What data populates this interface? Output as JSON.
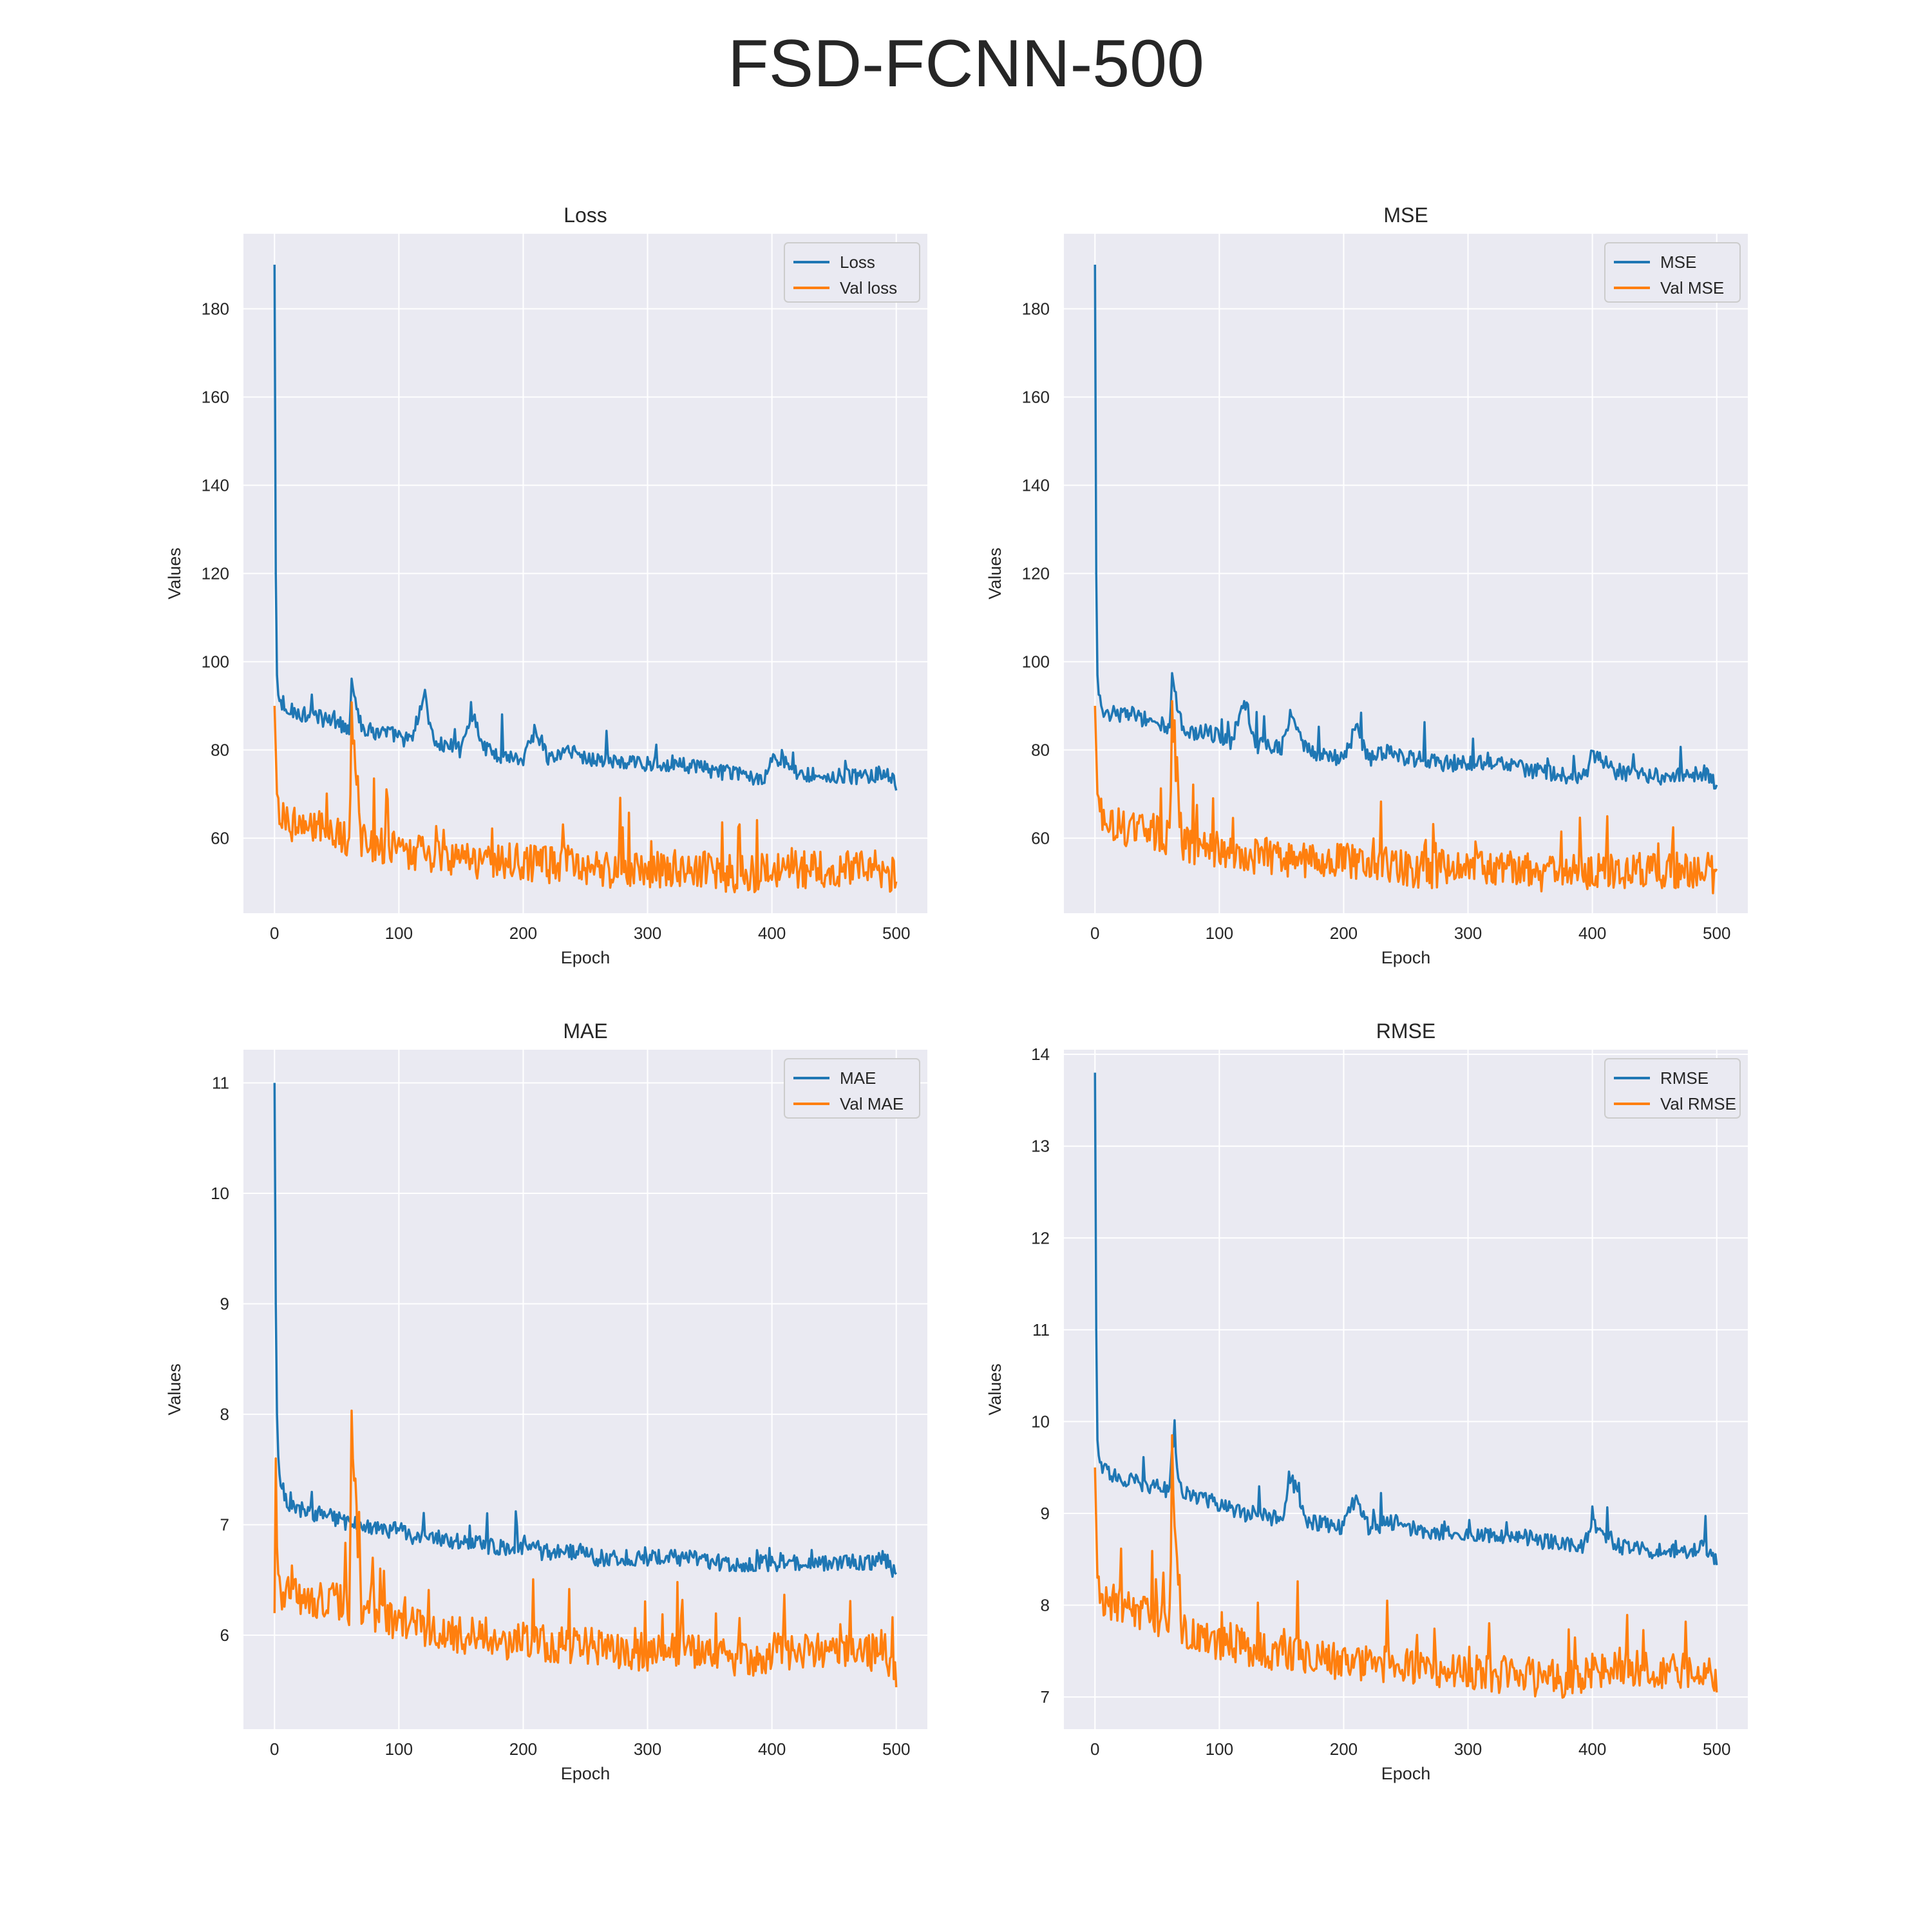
{
  "figure": {
    "title": "FSD-FCNN-500"
  },
  "colors": {
    "background": "#eaeaf2",
    "grid": "#ffffff",
    "train": "#1f77b4",
    "val": "#ff7f0e",
    "text": "#262626"
  },
  "chart_data": [
    {
      "type": "line",
      "title": "Loss",
      "xlabel": "Epoch",
      "ylabel": "Values",
      "xlim": [
        -25,
        525
      ],
      "ylim": [
        43,
        197
      ],
      "xticks": [
        0,
        100,
        200,
        300,
        400,
        500
      ],
      "yticks": [
        60,
        80,
        100,
        120,
        140,
        160,
        180
      ],
      "grid": true,
      "legend": "top-right",
      "series": [
        {
          "name": "Loss",
          "color": "#1f77b4",
          "x": [
            0,
            1,
            2,
            3,
            5,
            10,
            15,
            20,
            30,
            40,
            50,
            60,
            62,
            70,
            80,
            90,
            100,
            110,
            120,
            130,
            140,
            150,
            158,
            170,
            180,
            200,
            210,
            220,
            240,
            250,
            260,
            280,
            300,
            320,
            340,
            360,
            380,
            395,
            400,
            420,
            440,
            460,
            480,
            490,
            500
          ],
          "y": [
            190,
            120,
            97,
            92,
            90,
            88,
            89,
            88,
            88,
            87,
            86,
            85,
            96,
            85,
            84,
            84,
            83,
            82,
            92,
            81,
            81,
            80,
            89,
            80,
            79,
            78,
            85,
            78,
            80,
            78,
            78,
            77,
            77,
            77,
            76,
            75,
            74,
            74,
            79,
            75,
            74,
            74,
            74,
            75,
            72
          ]
        },
        {
          "name": "Val loss",
          "color": "#ff7f0e",
          "x": [
            0,
            1,
            2,
            3,
            5,
            10,
            20,
            30,
            40,
            50,
            60,
            62,
            70,
            80,
            90,
            100,
            110,
            120,
            130,
            140,
            150,
            160,
            170,
            180,
            200,
            215,
            220,
            240,
            260,
            280,
            300,
            310,
            320,
            340,
            360,
            380,
            390,
            400,
            420,
            440,
            460,
            480,
            490,
            500
          ],
          "y": [
            90,
            80,
            70,
            68,
            66,
            64,
            63,
            62,
            62,
            61,
            60,
            88,
            59,
            58,
            58,
            57,
            57,
            56,
            56,
            56,
            56,
            55,
            55,
            55,
            55,
            54,
            54,
            54,
            53,
            53,
            53,
            53,
            53,
            53,
            52,
            52,
            52,
            53,
            53,
            53,
            53,
            53,
            53,
            51
          ]
        }
      ]
    },
    {
      "type": "line",
      "title": "MSE",
      "xlabel": "Epoch",
      "ylabel": "Values",
      "xlim": [
        -25,
        525
      ],
      "ylim": [
        43,
        197
      ],
      "xticks": [
        0,
        100,
        200,
        300,
        400,
        500
      ],
      "yticks": [
        60,
        80,
        100,
        120,
        140,
        160,
        180
      ],
      "grid": true,
      "legend": "top-right",
      "series": [
        {
          "name": "MSE",
          "color": "#1f77b4",
          "x": [
            0,
            1,
            2,
            3,
            5,
            10,
            15,
            20,
            30,
            40,
            50,
            60,
            62,
            70,
            80,
            90,
            100,
            110,
            120,
            130,
            140,
            150,
            158,
            170,
            180,
            200,
            210,
            220,
            240,
            250,
            260,
            280,
            300,
            320,
            340,
            360,
            380,
            395,
            400,
            420,
            440,
            460,
            480,
            490,
            500
          ],
          "y": [
            190,
            120,
            97,
            92,
            90,
            88,
            89,
            88,
            88,
            87,
            86,
            85,
            96,
            85,
            84,
            84,
            83,
            82,
            92,
            81,
            81,
            80,
            89,
            80,
            79,
            78,
            85,
            78,
            80,
            78,
            78,
            77,
            77,
            77,
            76,
            75,
            74,
            74,
            79,
            75,
            74,
            74,
            74,
            75,
            72
          ]
        },
        {
          "name": "Val MSE",
          "color": "#ff7f0e",
          "x": [
            0,
            1,
            2,
            3,
            5,
            10,
            20,
            30,
            40,
            50,
            60,
            62,
            70,
            80,
            90,
            100,
            110,
            120,
            130,
            140,
            150,
            160,
            170,
            180,
            200,
            215,
            220,
            240,
            260,
            280,
            300,
            310,
            320,
            340,
            360,
            380,
            390,
            400,
            420,
            440,
            460,
            480,
            490,
            500
          ],
          "y": [
            90,
            80,
            70,
            68,
            66,
            64,
            63,
            62,
            62,
            61,
            60,
            88,
            59,
            58,
            58,
            57,
            57,
            56,
            56,
            56,
            56,
            55,
            55,
            55,
            55,
            54,
            54,
            54,
            53,
            53,
            53,
            53,
            53,
            53,
            52,
            52,
            52,
            53,
            53,
            53,
            53,
            53,
            53,
            51
          ]
        }
      ]
    },
    {
      "type": "line",
      "title": "MAE",
      "xlabel": "Epoch",
      "ylabel": "Values",
      "xlim": [
        -25,
        525
      ],
      "ylim": [
        5.15,
        11.3
      ],
      "xticks": [
        0,
        100,
        200,
        300,
        400,
        500
      ],
      "yticks": [
        6,
        7,
        8,
        9,
        10,
        11
      ],
      "grid": true,
      "legend": "top-right",
      "series": [
        {
          "name": "MAE",
          "color": "#1f77b4",
          "x": [
            0,
            1,
            2,
            3,
            5,
            10,
            20,
            30,
            40,
            50,
            60,
            70,
            80,
            90,
            100,
            110,
            120,
            130,
            140,
            150,
            160,
            170,
            180,
            200,
            215,
            220,
            240,
            260,
            280,
            300,
            320,
            340,
            360,
            380,
            395,
            400,
            420,
            440,
            460,
            480,
            490,
            500
          ],
          "y": [
            11.0,
            9.0,
            8.0,
            7.6,
            7.4,
            7.2,
            7.15,
            7.1,
            7.1,
            7.05,
            7.0,
            7.0,
            6.95,
            6.95,
            6.95,
            6.9,
            6.9,
            6.9,
            6.85,
            6.85,
            6.85,
            6.8,
            6.8,
            6.8,
            6.75,
            6.75,
            6.75,
            6.7,
            6.7,
            6.7,
            6.7,
            6.7,
            6.65,
            6.65,
            6.65,
            6.65,
            6.65,
            6.65,
            6.65,
            6.65,
            6.7,
            6.55
          ]
        },
        {
          "name": "Val MAE",
          "color": "#ff7f0e",
          "x": [
            0,
            1,
            2,
            3,
            5,
            10,
            20,
            30,
            40,
            50,
            60,
            62,
            70,
            80,
            90,
            100,
            110,
            120,
            130,
            140,
            150,
            160,
            170,
            180,
            200,
            215,
            220,
            240,
            260,
            280,
            300,
            310,
            320,
            340,
            360,
            380,
            390,
            400,
            420,
            440,
            460,
            480,
            490,
            500
          ],
          "y": [
            6.2,
            7.6,
            6.8,
            6.5,
            6.4,
            6.4,
            6.35,
            6.35,
            6.3,
            6.3,
            6.25,
            7.9,
            6.2,
            6.2,
            6.15,
            6.1,
            6.1,
            6.05,
            6.05,
            6.0,
            6.0,
            6.0,
            6.0,
            5.95,
            5.95,
            5.95,
            5.9,
            5.9,
            5.9,
            5.85,
            5.85,
            5.85,
            5.85,
            5.85,
            5.8,
            5.8,
            5.8,
            5.85,
            5.85,
            5.85,
            5.85,
            5.85,
            5.9,
            5.6
          ]
        }
      ]
    },
    {
      "type": "line",
      "title": "RMSE",
      "xlabel": "Epoch",
      "ylabel": "Values",
      "xlim": [
        -25,
        525
      ],
      "ylim": [
        6.65,
        14.05
      ],
      "xticks": [
        0,
        100,
        200,
        300,
        400,
        500
      ],
      "yticks": [
        7,
        8,
        9,
        10,
        11,
        12,
        13,
        14
      ],
      "grid": true,
      "legend": "top-right",
      "series": [
        {
          "name": "RMSE",
          "color": "#1f77b4",
          "x": [
            0,
            1,
            2,
            3,
            5,
            10,
            20,
            30,
            40,
            50,
            60,
            62,
            70,
            80,
            90,
            100,
            110,
            120,
            130,
            140,
            150,
            158,
            170,
            180,
            200,
            210,
            220,
            240,
            260,
            280,
            300,
            320,
            340,
            360,
            380,
            395,
            400,
            420,
            440,
            460,
            480,
            490,
            500
          ],
          "y": [
            13.8,
            11.0,
            9.8,
            9.6,
            9.5,
            9.45,
            9.4,
            9.35,
            9.3,
            9.3,
            9.25,
            9.8,
            9.2,
            9.2,
            9.15,
            9.1,
            9.05,
            9.0,
            9.0,
            8.95,
            8.95,
            9.4,
            8.9,
            8.9,
            8.85,
            9.2,
            8.85,
            8.9,
            8.8,
            8.8,
            8.75,
            8.75,
            8.75,
            8.7,
            8.65,
            8.65,
            8.9,
            8.65,
            8.6,
            8.6,
            8.6,
            8.65,
            8.5
          ]
        },
        {
          "name": "Val RMSE",
          "color": "#ff7f0e",
          "x": [
            0,
            1,
            2,
            3,
            5,
            10,
            20,
            30,
            40,
            50,
            60,
            62,
            70,
            80,
            90,
            100,
            110,
            120,
            130,
            140,
            150,
            160,
            170,
            180,
            200,
            215,
            220,
            240,
            260,
            280,
            300,
            310,
            320,
            340,
            360,
            380,
            390,
            400,
            420,
            440,
            460,
            480,
            490,
            500
          ],
          "y": [
            9.5,
            8.9,
            8.3,
            8.2,
            8.1,
            8.05,
            8.0,
            7.95,
            7.9,
            7.85,
            7.8,
            9.3,
            7.75,
            7.7,
            7.65,
            7.6,
            7.6,
            7.55,
            7.5,
            7.5,
            7.5,
            7.45,
            7.45,
            7.4,
            7.4,
            7.35,
            7.35,
            7.35,
            7.3,
            7.3,
            7.25,
            7.25,
            7.25,
            7.25,
            7.2,
            7.2,
            7.2,
            7.3,
            7.3,
            7.3,
            7.3,
            7.3,
            7.3,
            7.1
          ]
        }
      ]
    }
  ]
}
